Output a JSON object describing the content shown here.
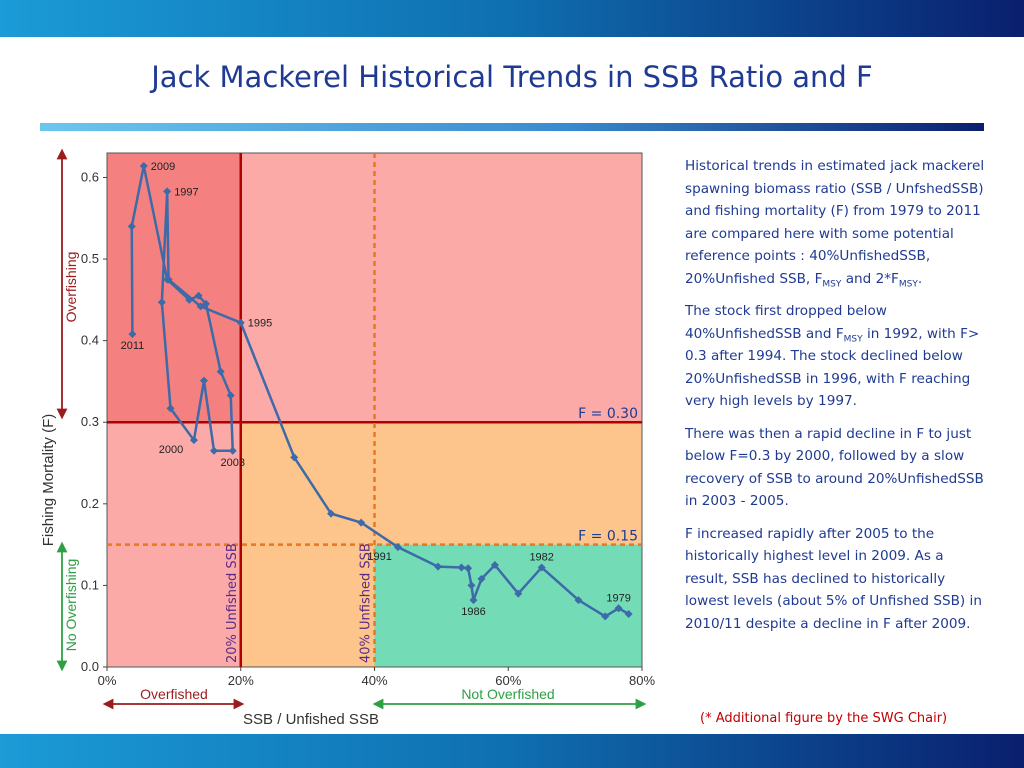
{
  "slide": {
    "title": "Jack Mackerel Historical Trends in SSB Ratio and F",
    "paragraph_1": {
      "text": "Historical trends in estimated jack mackerel spawning biomass  ratio (SSB / UnfshedSSB) and fishing mortality (F) from 1979 to 2011 are compared here with some potential reference points : 40%UnfishedSSB, 20%Unfished SSB, F",
      "sub_1": "MSY",
      "mid": " and 2*F",
      "sub_2": "MSY",
      "end": "."
    },
    "paragraph_2": {
      "text": "The stock first dropped below 40%UnfishedSSB and F",
      "sub": "MSY",
      "end": " in 1992, with F> 0.3 after 1994.  The stock declined below 20%UnfishedSSB in 1996, with F reaching very high levels by 1997."
    },
    "paragraph_3": "There was then a rapid decline in F to just below F=0.3 by 2000, followed by a slow recovery of SSB to around 20%UnfishedSSB in 2003 - 2005.",
    "paragraph_4": "F increased rapidly after 2005 to the historically highest level in 2009.  As a result, SSB has declined to historically lowest levels (about 5% of Unfished SSB) in 2010/11 despite a decline in F after 2009.",
    "footnote": "(* Additional figure by the SWG Chair)"
  },
  "chart_data": {
    "type": "line",
    "xlabel": "SSB / Unfished SSB",
    "ylabel": "Fishing Mortality (F)",
    "xlim": [
      0,
      0.8
    ],
    "ylim": [
      0,
      0.63
    ],
    "x_ticks": [
      0,
      0.2,
      0.4,
      0.6,
      0.8
    ],
    "x_tick_labels": [
      "0%",
      "20%",
      "40%",
      "60%",
      "80%"
    ],
    "y_ticks": [
      0,
      0.1,
      0.2,
      0.3,
      0.4,
      0.5,
      0.6
    ],
    "y_tick_labels": [
      "0.0",
      "0.1",
      "0.2",
      "0.3",
      "0.4",
      "0.5",
      "0.6"
    ],
    "x": [
      0.78,
      0.765,
      0.745,
      0.705,
      0.65,
      0.615,
      0.58,
      0.56,
      0.548,
      0.545,
      0.54,
      0.53,
      0.495,
      0.435,
      0.38,
      0.335,
      0.28,
      0.2,
      0.14,
      0.092,
      0.09,
      0.082,
      0.095,
      0.13,
      0.145,
      0.16,
      0.188,
      0.185,
      0.17,
      0.148,
      0.137,
      0.123,
      0.09,
      0.055,
      0.037,
      0.038
    ],
    "y": [
      0.065,
      0.072,
      0.062,
      0.082,
      0.122,
      0.09,
      0.125,
      0.108,
      0.082,
      0.1,
      0.121,
      0.122,
      0.123,
      0.147,
      0.177,
      0.188,
      0.257,
      0.422,
      0.442,
      0.475,
      0.583,
      0.447,
      0.317,
      0.278,
      0.351,
      0.265,
      0.265,
      0.333,
      0.362,
      0.445,
      0.455,
      0.45,
      0.475,
      0.614,
      0.54,
      0.408
    ],
    "year_labels": [
      {
        "text": "1979",
        "x": 0.765,
        "y": 0.072,
        "pos": "above"
      },
      {
        "text": "1982",
        "x": 0.65,
        "y": 0.122,
        "pos": "above"
      },
      {
        "text": "1986",
        "x": 0.548,
        "y": 0.082,
        "pos": "below"
      },
      {
        "text": "1991",
        "x": 0.435,
        "y": 0.147,
        "pos": "below-left"
      },
      {
        "text": "1995",
        "x": 0.2,
        "y": 0.422,
        "pos": "right"
      },
      {
        "text": "1997",
        "x": 0.09,
        "y": 0.583,
        "pos": "right"
      },
      {
        "text": "2000",
        "x": 0.123,
        "y": 0.278,
        "pos": "below-left"
      },
      {
        "text": "2003",
        "x": 0.188,
        "y": 0.265,
        "pos": "below"
      },
      {
        "text": "2009",
        "x": 0.055,
        "y": 0.614,
        "pos": "right"
      },
      {
        "text": "2011",
        "x": 0.038,
        "y": 0.408,
        "pos": "below"
      }
    ],
    "reference_lines": [
      {
        "axis": "y",
        "value": 0.3,
        "label": "F = 0.30",
        "style": "solid",
        "color": "#b00000"
      },
      {
        "axis": "y",
        "value": 0.15,
        "label": "F = 0.15",
        "style": "dashed",
        "color": "#e87722"
      },
      {
        "axis": "x",
        "value": 0.2,
        "label": "20% Unfished SSB",
        "style": "solid",
        "color": "#b00000"
      },
      {
        "axis": "x",
        "value": 0.4,
        "label": "40% Unfished SSB",
        "style": "dashed",
        "color": "#e87722"
      }
    ],
    "zones": {
      "overfishing": "Overfishing",
      "no_overfishing": "No Overfishing",
      "overfished": "Overfished",
      "not_overfished": "Not Overfished"
    },
    "colors": {
      "zone_dark_red": "#f4817f",
      "zone_light_pink": "#fbaaa8",
      "zone_orange": "#fdc58c",
      "zone_green": "#73dcb7",
      "series": "#3d6aa8",
      "title": "#1f3a93",
      "overfishing": "#9b1c1c",
      "no_overfishing": "#2ea043",
      "axis_text": "#333333",
      "rule_text": "#1f3a93"
    },
    "grid": false
  }
}
